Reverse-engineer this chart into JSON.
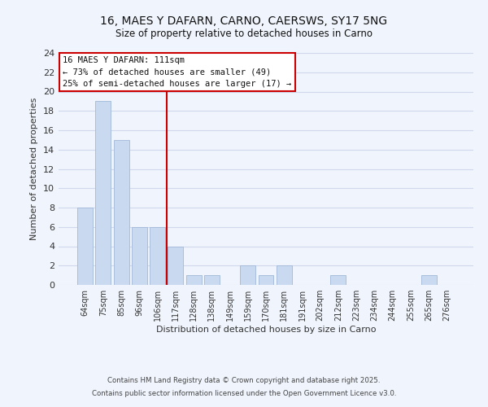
{
  "title": "16, MAES Y DAFARN, CARNO, CAERSWS, SY17 5NG",
  "subtitle": "Size of property relative to detached houses in Carno",
  "xlabel": "Distribution of detached houses by size in Carno",
  "ylabel": "Number of detached properties",
  "bar_labels": [
    "64sqm",
    "75sqm",
    "85sqm",
    "96sqm",
    "106sqm",
    "117sqm",
    "128sqm",
    "138sqm",
    "149sqm",
    "159sqm",
    "170sqm",
    "181sqm",
    "191sqm",
    "202sqm",
    "212sqm",
    "223sqm",
    "234sqm",
    "244sqm",
    "255sqm",
    "265sqm",
    "276sqm"
  ],
  "bar_values": [
    8,
    19,
    15,
    6,
    6,
    4,
    1,
    1,
    0,
    2,
    1,
    2,
    0,
    0,
    1,
    0,
    0,
    0,
    0,
    1,
    0
  ],
  "bar_color": "#c9d9f0",
  "bar_edge_color": "#a0b8d8",
  "vline_x": 4.5,
  "vline_color": "#cc0000",
  "ylim": [
    0,
    24
  ],
  "yticks": [
    0,
    2,
    4,
    6,
    8,
    10,
    12,
    14,
    16,
    18,
    20,
    22,
    24
  ],
  "annotation_title": "16 MAES Y DAFARN: 111sqm",
  "annotation_line1": "← 73% of detached houses are smaller (49)",
  "annotation_line2": "25% of semi-detached houses are larger (17) →",
  "footer1": "Contains HM Land Registry data © Crown copyright and database right 2025.",
  "footer2": "Contains public sector information licensed under the Open Government Licence v3.0.",
  "background_color": "#f0f4fc",
  "grid_color": "#d0d8ee"
}
